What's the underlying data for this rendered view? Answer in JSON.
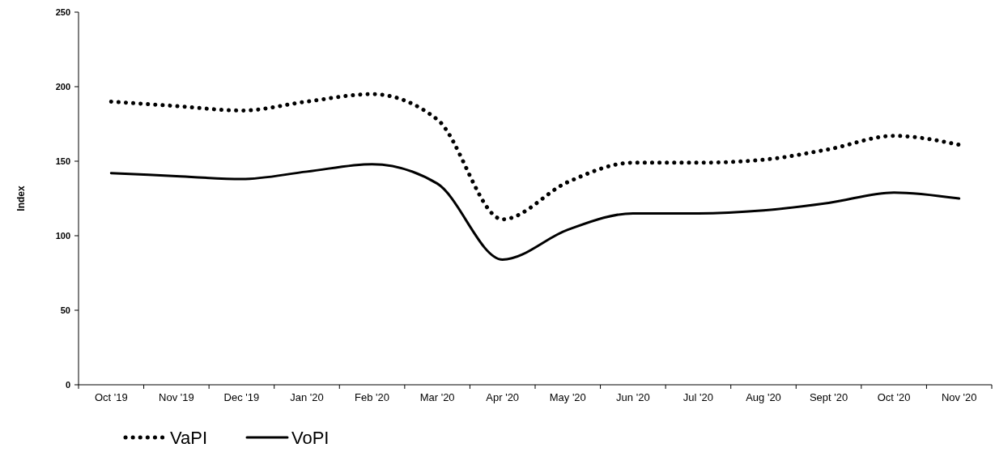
{
  "chart_data": {
    "type": "line",
    "ylabel": "Index",
    "categories": [
      "Oct '19",
      "Nov '19",
      "Dec '19",
      "Jan '20",
      "Feb '20",
      "Mar '20",
      "Apr '20",
      "May '20",
      "Jun '20",
      "Jul '20",
      "Aug '20",
      "Sept '20",
      "Oct '20",
      "Nov '20"
    ],
    "series": [
      {
        "name": "VaPI",
        "color": "#000000",
        "line_style": "dotted",
        "values": [
          190,
          187,
          184,
          190,
          195,
          178,
          111,
          136,
          149,
          149,
          151,
          158,
          167,
          161
        ]
      },
      {
        "name": "VoPI",
        "color": "#000000",
        "line_style": "solid",
        "values": [
          142,
          140,
          138,
          143,
          148,
          135,
          84,
          104,
          115,
          115,
          117,
          122,
          129,
          125
        ]
      }
    ],
    "ylim": [
      0,
      250
    ],
    "yticks": [
      0,
      50,
      100,
      150,
      200,
      250
    ],
    "grid": false,
    "legend": "bottom left"
  }
}
